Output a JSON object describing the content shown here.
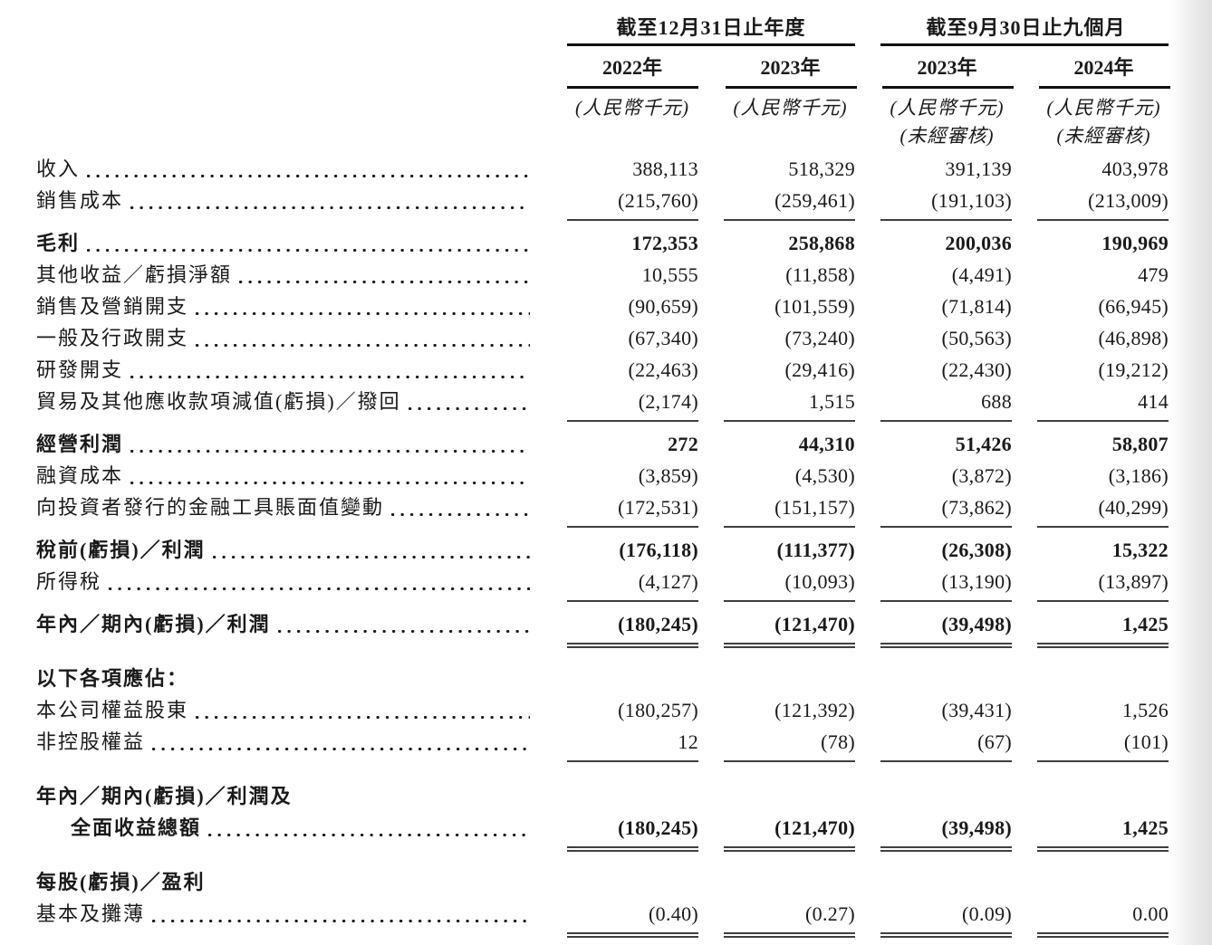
{
  "colors": {
    "text": "#1a1a1a",
    "header_rule": "#111111",
    "body_rule": "#3f3f3f",
    "background": "#ffffff"
  },
  "header": {
    "groups": [
      {
        "label": "截至12月31日止年度"
      },
      {
        "label": "截至9月30日止九個月"
      }
    ],
    "columns": [
      {
        "year": "2022年",
        "unit": "(人民幣千元)",
        "note": ""
      },
      {
        "year": "2023年",
        "unit": "(人民幣千元)",
        "note": ""
      },
      {
        "year": "2023年",
        "unit": "(人民幣千元)",
        "note": "(未經審核)"
      },
      {
        "year": "2024年",
        "unit": "(人民幣千元)",
        "note": "(未經審核)"
      }
    ]
  },
  "rows": [
    {
      "label": "收入",
      "values": [
        "388,113",
        "518,329",
        "391,139",
        "403,978"
      ],
      "bold": false,
      "leader": true,
      "rule": "none"
    },
    {
      "label": "銷售成本",
      "values": [
        "(215,760)",
        "(259,461)",
        "(191,103)",
        "(213,009)"
      ],
      "bold": false,
      "leader": true,
      "rule": "single"
    },
    {
      "label": "毛利",
      "values": [
        "172,353",
        "258,868",
        "200,036",
        "190,969"
      ],
      "bold": true,
      "leader": true,
      "rule": "none"
    },
    {
      "label": "其他收益／虧損淨額",
      "values": [
        "10,555",
        "(11,858)",
        "(4,491)",
        "479"
      ],
      "bold": false,
      "leader": true,
      "rule": "none"
    },
    {
      "label": "銷售及營銷開支",
      "values": [
        "(90,659)",
        "(101,559)",
        "(71,814)",
        "(66,945)"
      ],
      "bold": false,
      "leader": true,
      "rule": "none"
    },
    {
      "label": "一般及行政開支",
      "values": [
        "(67,340)",
        "(73,240)",
        "(50,563)",
        "(46,898)"
      ],
      "bold": false,
      "leader": true,
      "rule": "none"
    },
    {
      "label": "研發開支",
      "values": [
        "(22,463)",
        "(29,416)",
        "(22,430)",
        "(19,212)"
      ],
      "bold": false,
      "leader": true,
      "rule": "none"
    },
    {
      "label": "貿易及其他應收款項減值(虧損)／撥回",
      "values": [
        "(2,174)",
        "1,515",
        "688",
        "414"
      ],
      "bold": false,
      "leader": true,
      "rule": "single"
    },
    {
      "label": "經營利潤",
      "values": [
        "272",
        "44,310",
        "51,426",
        "58,807"
      ],
      "bold": true,
      "leader": true,
      "rule": "none"
    },
    {
      "label": "融資成本",
      "values": [
        "(3,859)",
        "(4,530)",
        "(3,872)",
        "(3,186)"
      ],
      "bold": false,
      "leader": true,
      "rule": "none"
    },
    {
      "label": "向投資者發行的金融工具賬面值變動",
      "values": [
        "(172,531)",
        "(151,157)",
        "(73,862)",
        "(40,299)"
      ],
      "bold": false,
      "leader": true,
      "rule": "single"
    },
    {
      "label": "稅前(虧損)／利潤",
      "values": [
        "(176,118)",
        "(111,377)",
        "(26,308)",
        "15,322"
      ],
      "bold": true,
      "leader": true,
      "rule": "none"
    },
    {
      "label": "所得稅",
      "values": [
        "(4,127)",
        "(10,093)",
        "(13,190)",
        "(13,897)"
      ],
      "bold": false,
      "leader": true,
      "rule": "single"
    },
    {
      "label": "年內／期內(虧損)／利潤",
      "values": [
        "(180,245)",
        "(121,470)",
        "(39,498)",
        "1,425"
      ],
      "bold": true,
      "leader": true,
      "rule": "double"
    },
    {
      "label": "以下各項應佔：",
      "values": null,
      "bold": true,
      "leader": false,
      "rule": "none",
      "space_before": true
    },
    {
      "label": "本公司權益股東",
      "values": [
        "(180,257)",
        "(121,392)",
        "(39,431)",
        "1,526"
      ],
      "bold": false,
      "leader": true,
      "rule": "none"
    },
    {
      "label": "非控股權益",
      "values": [
        "12",
        "(78)",
        "(67)",
        "(101)"
      ],
      "bold": false,
      "leader": true,
      "rule": "single"
    },
    {
      "label": "年內／期內(虧損)／利潤及",
      "values": null,
      "bold": true,
      "leader": false,
      "rule": "none",
      "space_before": true
    },
    {
      "label": "全面收益總額",
      "values": [
        "(180,245)",
        "(121,470)",
        "(39,498)",
        "1,425"
      ],
      "bold": true,
      "leader": true,
      "indent": true,
      "rule": "double"
    },
    {
      "label": "每股(虧損)／盈利",
      "values": null,
      "bold": true,
      "leader": false,
      "rule": "none",
      "space_before": true
    },
    {
      "label": "基本及攤薄",
      "values": [
        "(0.40)",
        "(0.27)",
        "(0.09)",
        "0.00"
      ],
      "bold": false,
      "leader": true,
      "rule": "double"
    }
  ]
}
